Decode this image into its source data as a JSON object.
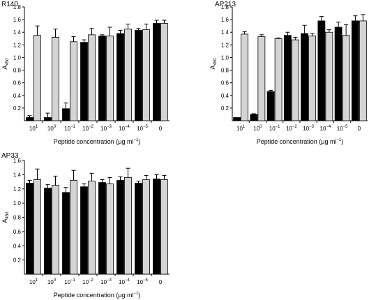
{
  "chart_data": [
    {
      "type": "bar",
      "title": "R140",
      "ylabel": "A450",
      "xlabel": "Peptide concentration (μg ml−1)",
      "categories": [
        "10^1",
        "10^0",
        "10^-1",
        "10^-2",
        "10^-3",
        "10^-4",
        "10^-5",
        "0"
      ],
      "ylim": [
        0,
        1.8
      ],
      "yticks": [
        0.2,
        0.4,
        0.6,
        0.8,
        1.0,
        1.2,
        1.4,
        1.6,
        1.8
      ],
      "series": [
        {
          "color": "#000000",
          "values": [
            0.05,
            0.05,
            0.19,
            1.24,
            1.34,
            1.38,
            1.43,
            1.54
          ],
          "errors": [
            0.03,
            0.07,
            0.09,
            0.04,
            0.02,
            0.05,
            0.03,
            0.05
          ]
        },
        {
          "color": "#d4d4d4",
          "values": [
            1.35,
            1.32,
            1.25,
            1.36,
            1.34,
            1.45,
            1.44,
            1.54
          ],
          "errors": [
            0.15,
            0.13,
            0.08,
            0.1,
            0.14,
            0.08,
            0.09,
            0.05
          ]
        }
      ]
    },
    {
      "type": "bar",
      "title": "AP213",
      "ylabel": "A450",
      "xlabel": "Peptide concentration (μg ml−1)",
      "categories": [
        "10^1",
        "10^0",
        "10^-1",
        "10^-2",
        "10^-3",
        "10^-4",
        "10^-5",
        "0"
      ],
      "ylim": [
        0,
        1.8
      ],
      "yticks": [
        0.2,
        0.4,
        0.6,
        0.8,
        1.0,
        1.2,
        1.4,
        1.6,
        1.8
      ],
      "series": [
        {
          "color": "#000000",
          "values": [
            0.05,
            0.1,
            0.46,
            1.35,
            1.38,
            1.58,
            1.48,
            1.58
          ],
          "errors": [
            0.0,
            0.01,
            0.02,
            0.05,
            0.13,
            0.07,
            0.08,
            0.08
          ]
        },
        {
          "color": "#d4d4d4",
          "values": [
            1.37,
            1.33,
            1.3,
            1.28,
            1.34,
            1.4,
            1.35,
            1.58
          ],
          "errors": [
            0.04,
            0.03,
            0.01,
            0.04,
            0.04,
            0.04,
            0.17,
            0.1
          ]
        }
      ]
    },
    {
      "type": "bar",
      "title": "AP33",
      "ylabel": "A450",
      "xlabel": "Peptide concentration (μg ml−1)",
      "categories": [
        "10^1",
        "10^0",
        "10^-1",
        "10^-2",
        "10^-3",
        "10^-4",
        "10^-5",
        "0"
      ],
      "ylim": [
        0,
        1.6
      ],
      "yticks": [
        0.2,
        0.4,
        0.6,
        0.8,
        1.0,
        1.2,
        1.4,
        1.6
      ],
      "series": [
        {
          "color": "#000000",
          "values": [
            1.28,
            1.21,
            1.15,
            1.23,
            1.29,
            1.32,
            1.28,
            1.34
          ],
          "errors": [
            0.04,
            0.05,
            0.07,
            0.04,
            0.04,
            0.05,
            0.03,
            0.06
          ]
        },
        {
          "color": "#d4d4d4",
          "values": [
            1.33,
            1.25,
            1.32,
            1.31,
            1.27,
            1.36,
            1.33,
            1.33
          ],
          "errors": [
            0.15,
            0.13,
            0.14,
            0.11,
            0.09,
            0.13,
            0.06,
            0.06
          ]
        }
      ]
    }
  ]
}
